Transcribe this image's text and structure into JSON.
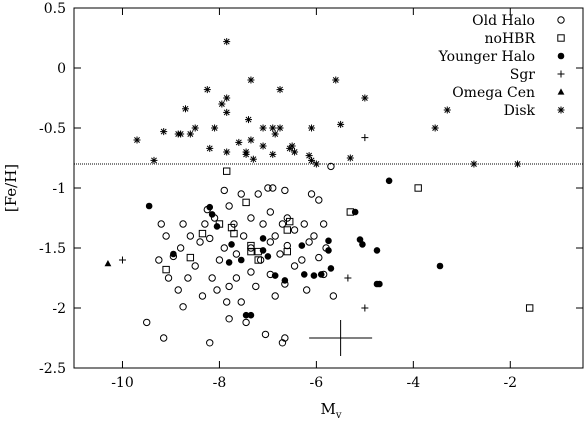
{
  "chart_data": {
    "type": "scatter",
    "xlabel": "M",
    "xlabel_sub": "v",
    "ylabel": "[Fe/H]",
    "xlim": [
      -11,
      -0.5
    ],
    "ylim": [
      -2.5,
      0.5
    ],
    "x_ticks": [
      -10,
      -8,
      -6,
      -4,
      -2
    ],
    "x_tick_labels": [
      "-10",
      "-8",
      "-6",
      "-4",
      "-2"
    ],
    "y_ticks": [
      0.5,
      0,
      -0.5,
      -1,
      -1.5,
      -2,
      -2.5
    ],
    "y_tick_labels": [
      "0.5",
      "0",
      "-0.5",
      "-1",
      "-1.5",
      "-2",
      "-2.5"
    ],
    "grid": false,
    "legend_position": "top-right",
    "reference_line": {
      "y": -0.8,
      "style": "dotted"
    },
    "error_bar": {
      "x": -5.5,
      "y": -2.25,
      "dx": 0.65,
      "dy": 0.15
    },
    "series": [
      {
        "name": "Old Halo",
        "marker": "open-circle",
        "points": [
          [
            -9.5,
            -2.12
          ],
          [
            -9.15,
            -2.25
          ],
          [
            -8.2,
            -2.29
          ],
          [
            -6.7,
            -2.29
          ],
          [
            -6.65,
            -2.25
          ],
          [
            -7.8,
            -2.09
          ],
          [
            -7.45,
            -2.12
          ],
          [
            -7.05,
            -2.22
          ],
          [
            -7.85,
            -1.95
          ],
          [
            -7.55,
            -1.95
          ],
          [
            -6.85,
            -1.9
          ],
          [
            -5.65,
            -1.9
          ],
          [
            -8.75,
            -1.99
          ],
          [
            -8.85,
            -1.85
          ],
          [
            -8.35,
            -1.9
          ],
          [
            -8.05,
            -1.85
          ],
          [
            -7.8,
            -1.82
          ],
          [
            -7.25,
            -1.82
          ],
          [
            -6.65,
            -1.8
          ],
          [
            -6.2,
            -1.85
          ],
          [
            -9.05,
            -1.75
          ],
          [
            -8.65,
            -1.75
          ],
          [
            -8.15,
            -1.75
          ],
          [
            -7.65,
            -1.75
          ],
          [
            -7.35,
            -1.7
          ],
          [
            -6.95,
            -1.72
          ],
          [
            -6.45,
            -1.65
          ],
          [
            -5.85,
            -1.72
          ],
          [
            -9.25,
            -1.6
          ],
          [
            -8.95,
            -1.57
          ],
          [
            -8.5,
            -1.65
          ],
          [
            -8.0,
            -1.6
          ],
          [
            -7.65,
            -1.55
          ],
          [
            -7.15,
            -1.6
          ],
          [
            -6.75,
            -1.55
          ],
          [
            -6.3,
            -1.6
          ],
          [
            -5.95,
            -1.58
          ],
          [
            -8.8,
            -1.5
          ],
          [
            -8.4,
            -1.45
          ],
          [
            -7.9,
            -1.5
          ],
          [
            -7.35,
            -1.5
          ],
          [
            -6.95,
            -1.45
          ],
          [
            -6.6,
            -1.48
          ],
          [
            -6.15,
            -1.45
          ],
          [
            -5.8,
            -1.5
          ],
          [
            -9.1,
            -1.4
          ],
          [
            -8.6,
            -1.4
          ],
          [
            -7.5,
            -1.4
          ],
          [
            -6.85,
            -1.4
          ],
          [
            -6.45,
            -1.35
          ],
          [
            -6.05,
            -1.4
          ],
          [
            -9.2,
            -1.3
          ],
          [
            -8.75,
            -1.3
          ],
          [
            -8.3,
            -1.3
          ],
          [
            -7.7,
            -1.3
          ],
          [
            -7.1,
            -1.3
          ],
          [
            -6.7,
            -1.3
          ],
          [
            -6.25,
            -1.3
          ],
          [
            -5.85,
            -1.3
          ],
          [
            -8.1,
            -1.25
          ],
          [
            -7.35,
            -1.25
          ],
          [
            -6.95,
            -1.2
          ],
          [
            -6.6,
            -1.25
          ],
          [
            -8.25,
            -1.18
          ],
          [
            -7.8,
            -1.15
          ],
          [
            -7.2,
            -1.05
          ],
          [
            -7.0,
            -1.0
          ],
          [
            -6.65,
            -1.02
          ],
          [
            -7.55,
            -1.05
          ],
          [
            -7.9,
            -1.02
          ],
          [
            -6.1,
            -1.05
          ],
          [
            -5.95,
            -1.1
          ],
          [
            -5.7,
            -0.82
          ],
          [
            -6.9,
            -1.0
          ],
          [
            -8.2,
            -1.42
          ]
        ]
      },
      {
        "name": "noHBR",
        "marker": "open-square",
        "points": [
          [
            -7.85,
            -0.86
          ],
          [
            -7.45,
            -1.12
          ],
          [
            -8.0,
            -1.3
          ],
          [
            -7.75,
            -1.33
          ],
          [
            -8.35,
            -1.38
          ],
          [
            -7.7,
            -1.38
          ],
          [
            -6.55,
            -1.28
          ],
          [
            -5.3,
            -1.2
          ],
          [
            -6.6,
            -1.35
          ],
          [
            -7.35,
            -1.48
          ],
          [
            -7.2,
            -1.53
          ],
          [
            -6.6,
            -1.53
          ],
          [
            -7.35,
            -1.53
          ],
          [
            -9.1,
            -1.68
          ],
          [
            -3.9,
            -1.0
          ],
          [
            -1.6,
            -2.0
          ],
          [
            -7.2,
            -1.6
          ],
          [
            -8.6,
            -1.58
          ]
        ]
      },
      {
        "name": "Younger Halo",
        "marker": "filled-circle",
        "points": [
          [
            -9.45,
            -1.15
          ],
          [
            -8.95,
            -1.55
          ],
          [
            -8.2,
            -1.16
          ],
          [
            -8.15,
            -1.22
          ],
          [
            -8.05,
            -1.32
          ],
          [
            -7.75,
            -1.47
          ],
          [
            -7.8,
            -1.62
          ],
          [
            -7.55,
            -1.6
          ],
          [
            -7.1,
            -1.42
          ],
          [
            -7.1,
            -1.52
          ],
          [
            -7.0,
            -1.57
          ],
          [
            -6.85,
            -1.73
          ],
          [
            -6.65,
            -1.77
          ],
          [
            -6.25,
            -1.72
          ],
          [
            -6.3,
            -1.48
          ],
          [
            -6.05,
            -1.73
          ],
          [
            -5.75,
            -1.44
          ],
          [
            -5.75,
            -1.52
          ],
          [
            -5.1,
            -1.43
          ],
          [
            -5.05,
            -1.47
          ],
          [
            -5.2,
            -1.2
          ],
          [
            -4.75,
            -1.52
          ],
          [
            -4.75,
            -1.8
          ],
          [
            -4.7,
            -1.8
          ],
          [
            -4.5,
            -0.94
          ],
          [
            -3.45,
            -1.65
          ],
          [
            -5.9,
            -1.72
          ],
          [
            -7.45,
            -2.06
          ],
          [
            -7.35,
            -2.06
          ],
          [
            -5.7,
            -1.67
          ]
        ]
      },
      {
        "name": "Sgr",
        "marker": "plus",
        "points": [
          [
            -10.0,
            -1.6
          ],
          [
            -5.35,
            -1.75
          ],
          [
            -5.0,
            -2.0
          ],
          [
            -5.0,
            -0.58
          ]
        ]
      },
      {
        "name": "Omega Cen",
        "marker": "filled-triangle",
        "points": [
          [
            -10.3,
            -1.63
          ]
        ]
      },
      {
        "name": "Disk",
        "marker": "star",
        "points": [
          [
            -7.85,
            0.22
          ],
          [
            -7.35,
            -0.1
          ],
          [
            -6.75,
            -0.18
          ],
          [
            -5.6,
            -0.1
          ],
          [
            -8.25,
            -0.18
          ],
          [
            -8.7,
            -0.34
          ],
          [
            -7.85,
            -0.25
          ],
          [
            -7.95,
            -0.3
          ],
          [
            -8.5,
            -0.5
          ],
          [
            -8.6,
            -0.55
          ],
          [
            -8.1,
            -0.5
          ],
          [
            -7.85,
            -0.37
          ],
          [
            -7.4,
            -0.43
          ],
          [
            -7.35,
            -0.6
          ],
          [
            -7.1,
            -0.5
          ],
          [
            -6.9,
            -0.5
          ],
          [
            -6.75,
            -0.5
          ],
          [
            -6.85,
            -0.55
          ],
          [
            -6.9,
            -0.72
          ],
          [
            -6.5,
            -0.65
          ],
          [
            -6.1,
            -0.5
          ],
          [
            -6.45,
            -0.7
          ],
          [
            -6.15,
            -0.73
          ],
          [
            -6.1,
            -0.77
          ],
          [
            -5.5,
            -0.47
          ],
          [
            -5.0,
            -0.25
          ],
          [
            -5.3,
            -0.75
          ],
          [
            -3.3,
            -0.35
          ],
          [
            -3.55,
            -0.5
          ],
          [
            -2.75,
            -0.8
          ],
          [
            -1.85,
            -0.8
          ],
          [
            -9.7,
            -0.6
          ],
          [
            -9.35,
            -0.77
          ],
          [
            -9.15,
            -0.53
          ],
          [
            -8.8,
            -0.55
          ],
          [
            -8.2,
            -0.67
          ],
          [
            -7.85,
            -0.7
          ],
          [
            -7.45,
            -0.72
          ],
          [
            -7.3,
            -0.76
          ],
          [
            -7.6,
            -0.62
          ],
          [
            -7.1,
            -0.65
          ],
          [
            -6.55,
            -0.67
          ],
          [
            -6.0,
            -0.8
          ],
          [
            -8.85,
            -0.55
          ],
          [
            -7.45,
            -0.7
          ]
        ]
      }
    ]
  }
}
